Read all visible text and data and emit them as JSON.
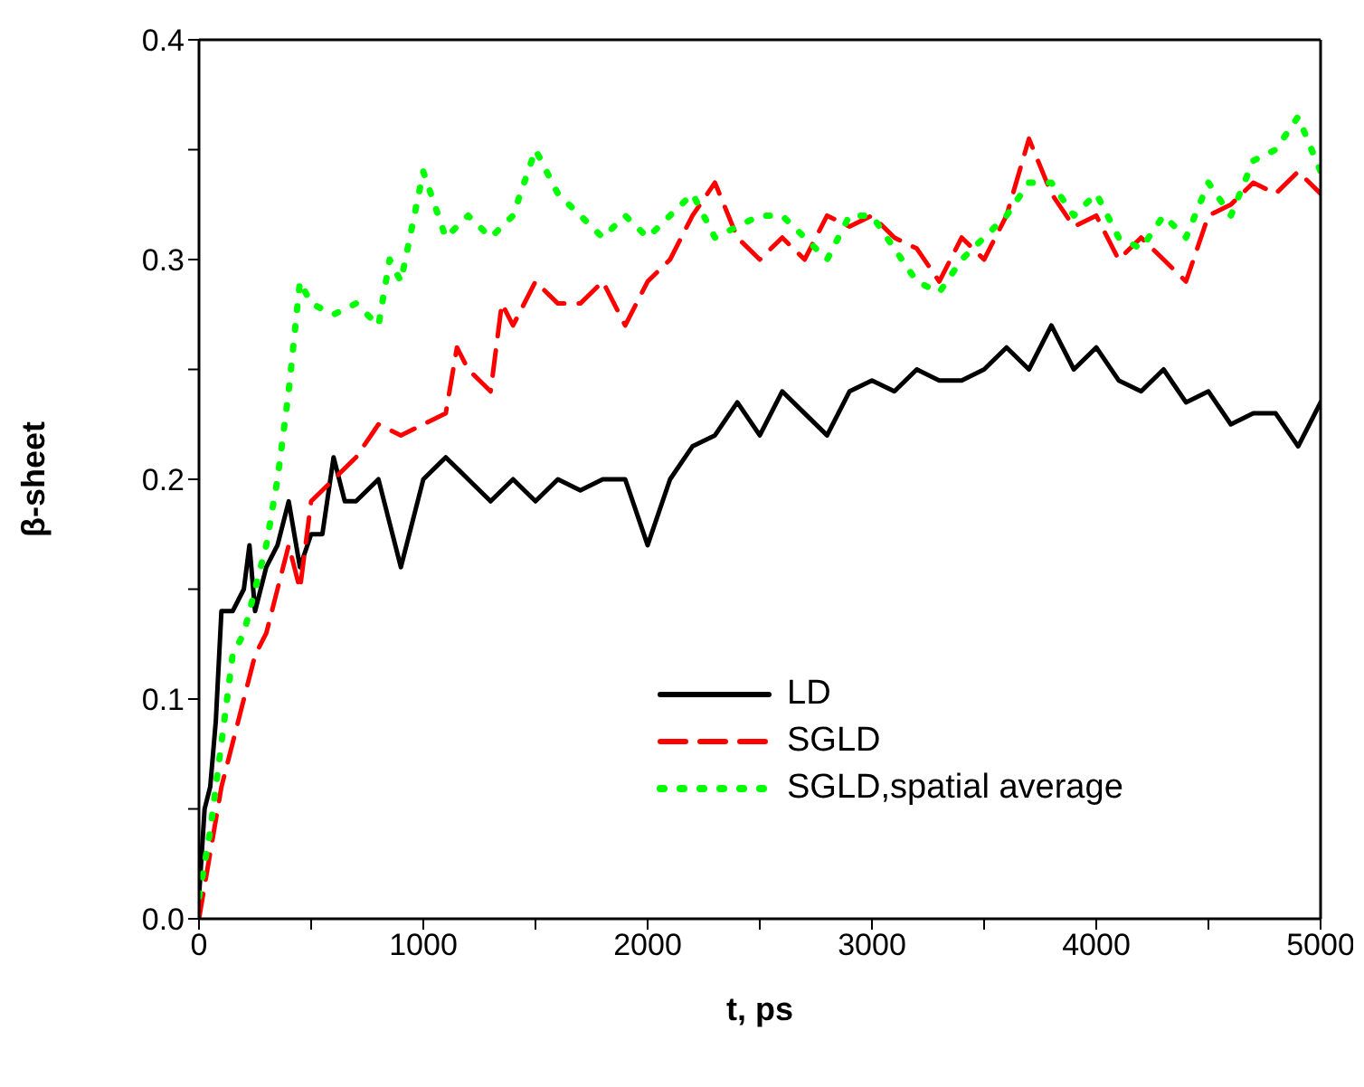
{
  "chart_data": {
    "type": "line",
    "xlabel": "t, ps",
    "ylabel": "β-sheet",
    "xlim": [
      0,
      5000
    ],
    "ylim": [
      0,
      0.4
    ],
    "xticks": [
      0,
      {
        "value": 500,
        "label": null
      },
      1000,
      {
        "value": 1500,
        "label": null
      },
      2000,
      {
        "value": 2500,
        "label": null
      },
      3000,
      {
        "value": 3500,
        "label": null
      },
      4000,
      {
        "value": 4500,
        "label": null
      },
      5000
    ],
    "yticks": [
      {
        "value": 0,
        "label": "0.0"
      },
      {
        "value": 0.05,
        "label": null
      },
      0.1,
      {
        "value": 0.15,
        "label": null
      },
      0.2,
      {
        "value": 0.25,
        "label": null
      },
      0.3,
      {
        "value": 0.35,
        "label": null
      },
      0.4
    ],
    "legend": "bottom right",
    "marker": "none",
    "series": [
      {
        "name": "LD",
        "color": "#000000",
        "line_style": "solid",
        "x": [
          0,
          25,
          50,
          75,
          100,
          150,
          200,
          225,
          250,
          300,
          350,
          400,
          450,
          500,
          550,
          600,
          650,
          700,
          800,
          900,
          1000,
          1100,
          1200,
          1300,
          1400,
          1500,
          1600,
          1700,
          1800,
          1900,
          2000,
          2100,
          2200,
          2300,
          2400,
          2500,
          2600,
          2700,
          2800,
          2900,
          3000,
          3100,
          3200,
          3300,
          3400,
          3500,
          3600,
          3700,
          3800,
          3900,
          4000,
          4100,
          4200,
          4300,
          4400,
          4500,
          4600,
          4700,
          4800,
          4900,
          5000
        ],
        "values": [
          0.01,
          0.05,
          0.06,
          0.09,
          0.14,
          0.14,
          0.15,
          0.17,
          0.14,
          0.16,
          0.17,
          0.19,
          0.16,
          0.175,
          0.175,
          0.21,
          0.19,
          0.19,
          0.2,
          0.16,
          0.2,
          0.21,
          0.2,
          0.19,
          0.2,
          0.19,
          0.2,
          0.195,
          0.2,
          0.2,
          0.17,
          0.2,
          0.215,
          0.22,
          0.235,
          0.22,
          0.24,
          0.23,
          0.22,
          0.24,
          0.245,
          0.24,
          0.25,
          0.245,
          0.245,
          0.25,
          0.26,
          0.25,
          0.27,
          0.25,
          0.26,
          0.245,
          0.24,
          0.25,
          0.235,
          0.24,
          0.225,
          0.23,
          0.23,
          0.215,
          0.235
        ]
      },
      {
        "name": "SGLD",
        "color": "#ff0000",
        "line_style": "dashed",
        "x": [
          0,
          50,
          100,
          150,
          200,
          250,
          300,
          350,
          400,
          450,
          500,
          600,
          700,
          800,
          900,
          1000,
          1100,
          1150,
          1200,
          1300,
          1350,
          1400,
          1500,
          1600,
          1700,
          1800,
          1900,
          2000,
          2100,
          2200,
          2300,
          2400,
          2500,
          2600,
          2700,
          2800,
          2900,
          3000,
          3100,
          3200,
          3300,
          3400,
          3500,
          3600,
          3700,
          3800,
          3900,
          4000,
          4100,
          4200,
          4300,
          4400,
          4500,
          4600,
          4700,
          4800,
          4900,
          5000
        ],
        "values": [
          0.0,
          0.03,
          0.06,
          0.08,
          0.1,
          0.12,
          0.13,
          0.15,
          0.17,
          0.15,
          0.19,
          0.2,
          0.21,
          0.225,
          0.22,
          0.225,
          0.23,
          0.26,
          0.25,
          0.24,
          0.28,
          0.27,
          0.29,
          0.28,
          0.28,
          0.29,
          0.27,
          0.29,
          0.3,
          0.32,
          0.335,
          0.31,
          0.3,
          0.31,
          0.3,
          0.32,
          0.315,
          0.32,
          0.31,
          0.305,
          0.29,
          0.31,
          0.3,
          0.32,
          0.355,
          0.33,
          0.315,
          0.32,
          0.3,
          0.31,
          0.3,
          0.29,
          0.32,
          0.325,
          0.335,
          0.33,
          0.34,
          0.33
        ]
      },
      {
        "name": "SGLD,spatial average",
        "color": "#00ff00",
        "line_style": "dotted",
        "x": [
          0,
          50,
          100,
          150,
          200,
          250,
          300,
          350,
          400,
          450,
          500,
          600,
          700,
          800,
          850,
          900,
          1000,
          1100,
          1200,
          1300,
          1400,
          1500,
          1600,
          1700,
          1800,
          1900,
          2000,
          2100,
          2200,
          2300,
          2400,
          2500,
          2600,
          2700,
          2800,
          2900,
          3000,
          3100,
          3200,
          3300,
          3400,
          3500,
          3600,
          3700,
          3800,
          3900,
          4000,
          4100,
          4200,
          4300,
          4400,
          4500,
          4600,
          4700,
          4800,
          4900,
          5000
        ],
        "values": [
          0.01,
          0.04,
          0.08,
          0.12,
          0.13,
          0.15,
          0.17,
          0.2,
          0.24,
          0.29,
          0.28,
          0.275,
          0.28,
          0.27,
          0.3,
          0.29,
          0.34,
          0.31,
          0.32,
          0.31,
          0.32,
          0.35,
          0.33,
          0.32,
          0.31,
          0.32,
          0.31,
          0.32,
          0.33,
          0.31,
          0.315,
          0.32,
          0.32,
          0.31,
          0.3,
          0.32,
          0.32,
          0.305,
          0.29,
          0.285,
          0.3,
          0.31,
          0.32,
          0.335,
          0.335,
          0.32,
          0.33,
          0.31,
          0.305,
          0.32,
          0.31,
          0.335,
          0.32,
          0.345,
          0.35,
          0.365,
          0.34
        ]
      }
    ]
  }
}
